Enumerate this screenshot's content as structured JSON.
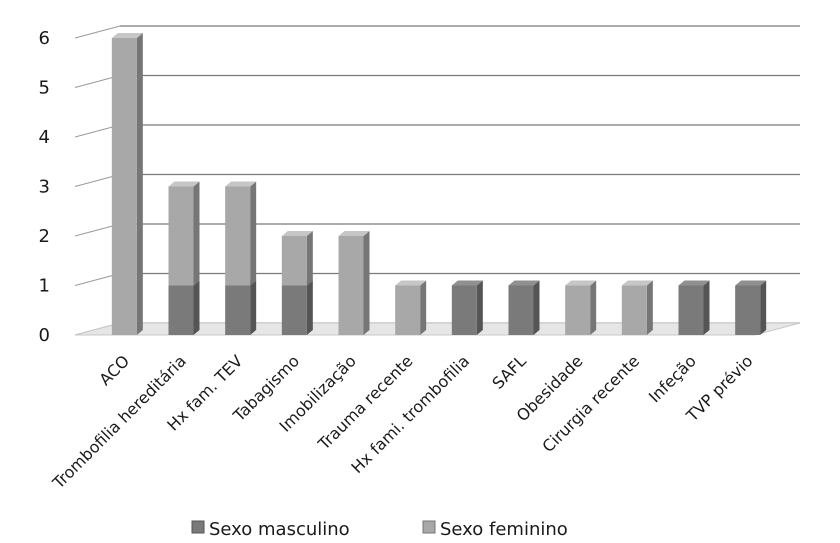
{
  "chart_data": {
    "type": "bar",
    "stacked": true,
    "categories": [
      "ACO",
      "Trombofilia hereditária",
      "Hx fam. TEV",
      "Tabagismo",
      "Imobilização",
      "Trauma recente",
      "Hx fami. trombofilia",
      "SAFL",
      "Obesidade",
      "Cirurgia recente",
      "Infeção",
      "TVP prévio"
    ],
    "series": [
      {
        "name": "Sexo masculino",
        "values": [
          0,
          1,
          1,
          1,
          0,
          0,
          1,
          1,
          0,
          0,
          1,
          1
        ],
        "color": "#7a7a7a"
      },
      {
        "name": "Sexo feminino",
        "values": [
          6,
          2,
          2,
          1,
          2,
          1,
          0,
          0,
          1,
          1,
          0,
          0
        ],
        "color": "#a8a8a8"
      }
    ],
    "ylim": [
      0,
      6
    ],
    "yticks": [
      0,
      1,
      2,
      3,
      4,
      5,
      6
    ],
    "grid": true,
    "legend_position": "bottom"
  }
}
